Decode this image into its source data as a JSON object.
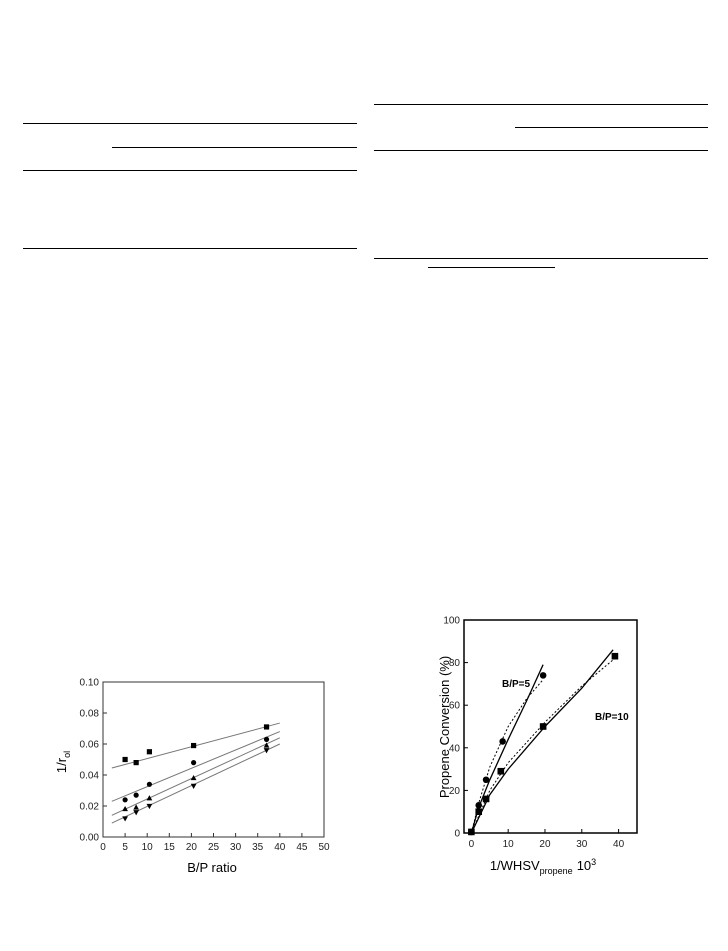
{
  "chart_data": [
    {
      "type": "scatter",
      "xlabel": "B/P ratio",
      "ylabel": "1/r",
      "ylabel_sub": "ol",
      "xlim": [
        0,
        50
      ],
      "ylim": [
        0.0,
        0.1
      ],
      "xticks": [
        0,
        5,
        10,
        15,
        20,
        25,
        30,
        35,
        40,
        45,
        50
      ],
      "yticks": [
        "0.00",
        "0.02",
        "0.04",
        "0.06",
        "0.08",
        "0.10"
      ],
      "series": [
        {
          "marker": "square",
          "x": [
            5,
            7.5,
            10.5,
            20.5,
            37
          ],
          "y": [
            0.05,
            0.048,
            0.055,
            0.059,
            0.071
          ],
          "fit": [
            [
              2,
              0.0445
            ],
            [
              40,
              0.0735
            ]
          ]
        },
        {
          "marker": "circle",
          "x": [
            5,
            7.5,
            10.5,
            20.5,
            37
          ],
          "y": [
            0.024,
            0.027,
            0.034,
            0.048,
            0.063
          ],
          "fit": [
            [
              2,
              0.023
            ],
            [
              40,
              0.068
            ]
          ]
        },
        {
          "marker": "triangle-up",
          "x": [
            5,
            7.5,
            10.5,
            20.5,
            37
          ],
          "y": [
            0.018,
            0.019,
            0.025,
            0.038,
            0.059
          ],
          "fit": [
            [
              2,
              0.014
            ],
            [
              40,
              0.064
            ]
          ]
        },
        {
          "marker": "triangle-down",
          "x": [
            5,
            7.5,
            10.5,
            20.5,
            37
          ],
          "y": [
            0.012,
            0.016,
            0.02,
            0.033,
            0.056
          ],
          "fit": [
            [
              2,
              0.009
            ],
            [
              40,
              0.06
            ]
          ]
        }
      ]
    },
    {
      "type": "scatter",
      "xlabel": "1/WHSV",
      "xlabel_sub": "propene",
      "xlabel_suffix": "10",
      "xlabel_sup": "3",
      "ylabel": "Propene Conversion (%)",
      "xlim": [
        -2,
        45
      ],
      "ylim": [
        0,
        100
      ],
      "xticks": [
        0,
        10,
        20,
        30,
        40
      ],
      "yticks": [
        0,
        20,
        40,
        60,
        80,
        100
      ],
      "series": [
        {
          "name": "B/P=5",
          "marker": "circle",
          "x": [
            0,
            2,
            4,
            8.5,
            19.5
          ],
          "y": [
            0.5,
            13,
            25,
            43,
            74
          ],
          "fit_solid": [
            [
              0,
              0
            ],
            [
              2,
              12
            ],
            [
              5,
              25
            ],
            [
              10,
              44
            ],
            [
              15,
              62
            ],
            [
              19.5,
              79
            ]
          ],
          "fit_dotted": [
            [
              0,
              0
            ],
            [
              2,
              14
            ],
            [
              5,
              31
            ],
            [
              10,
              50
            ],
            [
              15,
              63
            ],
            [
              19.5,
              72
            ]
          ]
        },
        {
          "name": "B/P=10",
          "marker": "square",
          "x": [
            0,
            2,
            4,
            8,
            19.5,
            39
          ],
          "y": [
            0.5,
            10,
            16,
            29,
            50,
            83
          ],
          "fit_solid": [
            [
              0,
              0
            ],
            [
              5,
              18
            ],
            [
              10,
              30
            ],
            [
              20,
              50
            ],
            [
              30,
              68
            ],
            [
              38.5,
              86
            ]
          ],
          "fit_dotted": [
            [
              0,
              0
            ],
            [
              5,
              20
            ],
            [
              10,
              33
            ],
            [
              20,
              52
            ],
            [
              30,
              69
            ],
            [
              39,
              82
            ]
          ]
        }
      ]
    }
  ]
}
